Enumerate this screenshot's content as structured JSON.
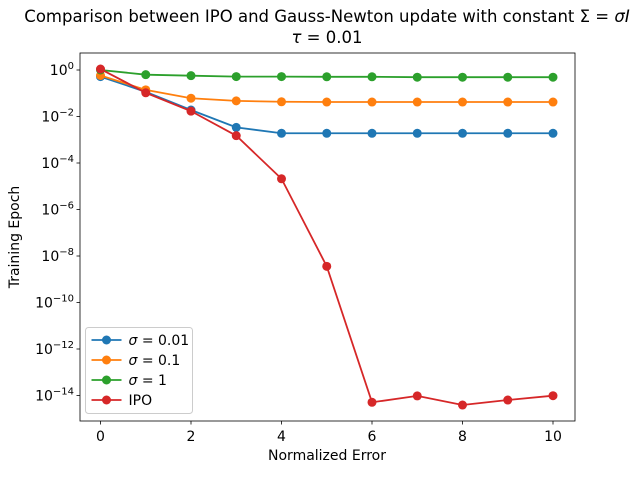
{
  "figure": {
    "title": {
      "line1_text": "Comparison between IPO and Gauss-Newton update with constant ",
      "line1_math": "Σ = ",
      "line1_math_italic": "σI",
      "line2_italic": "τ",
      "line2_text": " = 0.01"
    },
    "xlabel": "Normalized Error",
    "ylabel": "Training Epoch"
  },
  "chart_data": {
    "type": "line",
    "title": "Comparison between IPO and Gauss-Newton update with constant Σ = σI",
    "subtitle": "τ = 0.01",
    "xlabel": "Normalized Error",
    "ylabel": "Training Epoch",
    "x": [
      0,
      1,
      2,
      3,
      4,
      5,
      6,
      7,
      8,
      9,
      10
    ],
    "series": [
      {
        "name": "σ = 0.01",
        "legend_sym": "σ",
        "legend_rest": " = 0.01",
        "color": "#1f77b4",
        "values": [
          0.52,
          0.115,
          0.019,
          0.0034,
          0.0019,
          0.0019,
          0.0019,
          0.0019,
          0.0019,
          0.0019,
          0.0019
        ]
      },
      {
        "name": "σ = 0.1",
        "legend_sym": "σ",
        "legend_rest": " = 0.1",
        "color": "#ff7f0e",
        "values": [
          0.58,
          0.14,
          0.061,
          0.047,
          0.043,
          0.042,
          0.042,
          0.042,
          0.042,
          0.042,
          0.042
        ]
      },
      {
        "name": "σ = 1",
        "legend_sym": "σ",
        "legend_rest": " = 1",
        "color": "#2ca02c",
        "values": [
          1.0,
          0.63,
          0.57,
          0.52,
          0.52,
          0.51,
          0.51,
          0.49,
          0.49,
          0.49,
          0.49
        ]
      },
      {
        "name": "IPO",
        "legend_sym": "",
        "legend_rest": "IPO",
        "color": "#d62728",
        "values": [
          1.1,
          0.105,
          0.017,
          0.0015,
          2.1e-05,
          3.6e-09,
          5.1e-15,
          9.6e-15,
          3.9e-15,
          6.4e-15,
          9.8e-15
        ]
      }
    ],
    "x_ticks": [
      0,
      2,
      4,
      6,
      8,
      10
    ],
    "y_tick_exps": [
      0,
      -2,
      -4,
      -6,
      -8,
      -10,
      -12,
      -14
    ],
    "xlim": [
      -0.45,
      10.45
    ],
    "ylim_exp": [
      -15.1,
      0.73
    ],
    "yscale": "log",
    "grid": false,
    "legend_position": "lower left"
  },
  "colors": {
    "spine": "#000000",
    "legend_border": "#cccccc",
    "background": "#ffffff",
    "text": "#000000"
  }
}
